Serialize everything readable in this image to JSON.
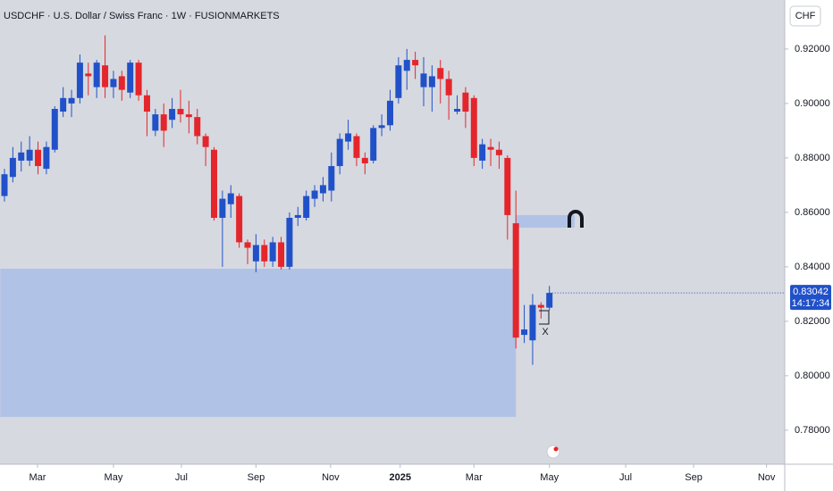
{
  "chart_data": {
    "type": "candlestick",
    "title": "USDCHF · U.S. Dollar / Swiss Franc · 1W · FUSIONMARKETS",
    "currency": "CHF",
    "up_color": "#2151c8",
    "down_color": "#e4262c",
    "categories": [
      null,
      null,
      null,
      null,
      null,
      null,
      null,
      null,
      null,
      null,
      null,
      null,
      null,
      null,
      null,
      null,
      null,
      null,
      null,
      null,
      null,
      null,
      null,
      null,
      null,
      null,
      null,
      null,
      null,
      null,
      null,
      null,
      null,
      null,
      null,
      null,
      null,
      null,
      null,
      null,
      null,
      null,
      null,
      null,
      null,
      null,
      null,
      null,
      null,
      null,
      null,
      null,
      null,
      null,
      null,
      null,
      null,
      null,
      null,
      null,
      null,
      null,
      null,
      null,
      null,
      null
    ],
    "open": [
      0.866,
      0.873,
      0.879,
      0.879,
      0.883,
      0.876,
      0.883,
      0.897,
      0.9,
      0.902,
      0.911,
      0.906,
      0.914,
      0.906,
      0.91,
      0.904,
      0.915,
      0.903,
      0.89,
      0.896,
      0.894,
      0.898,
      0.896,
      0.895,
      0.888,
      0.883,
      0.858,
      0.863,
      0.866,
      0.849,
      0.842,
      0.848,
      0.842,
      0.849,
      0.84,
      0.858,
      0.858,
      0.865,
      0.867,
      0.868,
      0.877,
      0.886,
      0.888,
      0.88,
      0.879,
      0.891,
      0.892,
      0.902,
      0.912,
      0.916,
      0.906,
      0.906,
      0.913,
      0.909,
      0.897,
      0.904,
      0.902,
      0.879,
      0.884,
      0.883,
      0.88,
      0.856,
      0.815,
      0.813,
      0.826,
      0.825
    ],
    "close": [
      0.874,
      0.88,
      0.882,
      0.883,
      0.877,
      0.884,
      0.898,
      0.902,
      0.902,
      0.915,
      0.91,
      0.915,
      0.906,
      0.909,
      0.905,
      0.915,
      0.903,
      0.897,
      0.896,
      0.89,
      0.898,
      0.896,
      0.895,
      0.888,
      0.884,
      0.858,
      0.865,
      0.867,
      0.849,
      0.847,
      0.848,
      0.842,
      0.849,
      0.84,
      0.858,
      0.859,
      0.866,
      0.868,
      0.87,
      0.877,
      0.887,
      0.889,
      0.88,
      0.878,
      0.891,
      0.892,
      0.901,
      0.914,
      0.916,
      0.914,
      0.911,
      0.91,
      0.909,
      0.903,
      0.898,
      0.897,
      0.88,
      0.885,
      0.883,
      0.881,
      0.859,
      0.814,
      0.817,
      0.826,
      0.825,
      0.83042
    ],
    "high": [
      0.876,
      0.884,
      0.886,
      0.888,
      0.886,
      0.886,
      0.899,
      0.906,
      0.905,
      0.918,
      0.915,
      0.916,
      0.925,
      0.912,
      0.912,
      0.916,
      0.916,
      0.905,
      0.898,
      0.9,
      0.902,
      0.905,
      0.901,
      0.898,
      0.889,
      0.884,
      0.868,
      0.87,
      0.867,
      0.85,
      0.852,
      0.85,
      0.851,
      0.851,
      0.86,
      0.862,
      0.868,
      0.87,
      0.873,
      0.882,
      0.889,
      0.894,
      0.889,
      0.882,
      0.892,
      0.896,
      0.905,
      0.917,
      0.92,
      0.919,
      0.917,
      0.914,
      0.916,
      0.912,
      0.903,
      0.906,
      0.903,
      0.887,
      0.887,
      0.886,
      0.881,
      0.868,
      0.826,
      0.83,
      0.827,
      0.833
    ],
    "low": [
      0.864,
      0.871,
      0.875,
      0.877,
      0.874,
      0.874,
      0.882,
      0.895,
      0.895,
      0.9,
      0.903,
      0.902,
      0.902,
      0.902,
      0.901,
      0.902,
      0.901,
      0.888,
      0.888,
      0.884,
      0.891,
      0.893,
      0.889,
      0.885,
      0.877,
      0.857,
      0.84,
      0.858,
      0.847,
      0.841,
      0.838,
      0.84,
      0.84,
      0.839,
      0.839,
      0.855,
      0.857,
      0.862,
      0.864,
      0.864,
      0.874,
      0.883,
      0.877,
      0.874,
      0.878,
      0.888,
      0.89,
      0.9,
      0.905,
      0.909,
      0.899,
      0.897,
      0.9,
      0.894,
      0.896,
      0.891,
      0.877,
      0.876,
      0.877,
      0.876,
      0.85,
      0.81,
      0.812,
      0.804,
      0.821,
      0.824
    ],
    "last_price": 0.83042,
    "countdown": "14:17:34",
    "zones": [
      {
        "top": 0.8393,
        "bottom": 0.7849,
        "x0": -0.5,
        "x1": 61
      },
      {
        "top": 0.859,
        "bottom": 0.8544,
        "x0": 61,
        "x1": 68
      }
    ],
    "annotations": [
      "X"
    ],
    "ylim": [
      0.7675,
      0.938
    ],
    "yticks": [
      {
        "value": 0.78,
        "label": "0.78000"
      },
      {
        "value": 0.8,
        "label": "0.80000"
      },
      {
        "value": 0.82,
        "label": "0.82000"
      },
      {
        "value": 0.84,
        "label": "0.84000"
      },
      {
        "value": 0.86,
        "label": "0.86000"
      },
      {
        "value": 0.88,
        "label": "0.88000"
      },
      {
        "value": 0.9,
        "label": "0.90000"
      },
      {
        "value": 0.92,
        "label": "0.92000"
      }
    ],
    "xticks": [
      {
        "value": 3.94,
        "label": "Mar"
      },
      {
        "value": 13.0,
        "label": "May"
      },
      {
        "value": 21.1,
        "label": "Jul"
      },
      {
        "value": 30.0,
        "label": "Sep"
      },
      {
        "value": 38.9,
        "label": "Nov"
      },
      {
        "value": 47.2,
        "label": "2025"
      },
      {
        "value": 56.0,
        "label": "Mar"
      },
      {
        "value": 65.0,
        "label": "May"
      },
      {
        "value": 74.1,
        "label": "Jul"
      },
      {
        "value": 82.2,
        "label": "Sep"
      },
      {
        "value": 90.9,
        "label": "Nov"
      }
    ],
    "grid": false
  }
}
